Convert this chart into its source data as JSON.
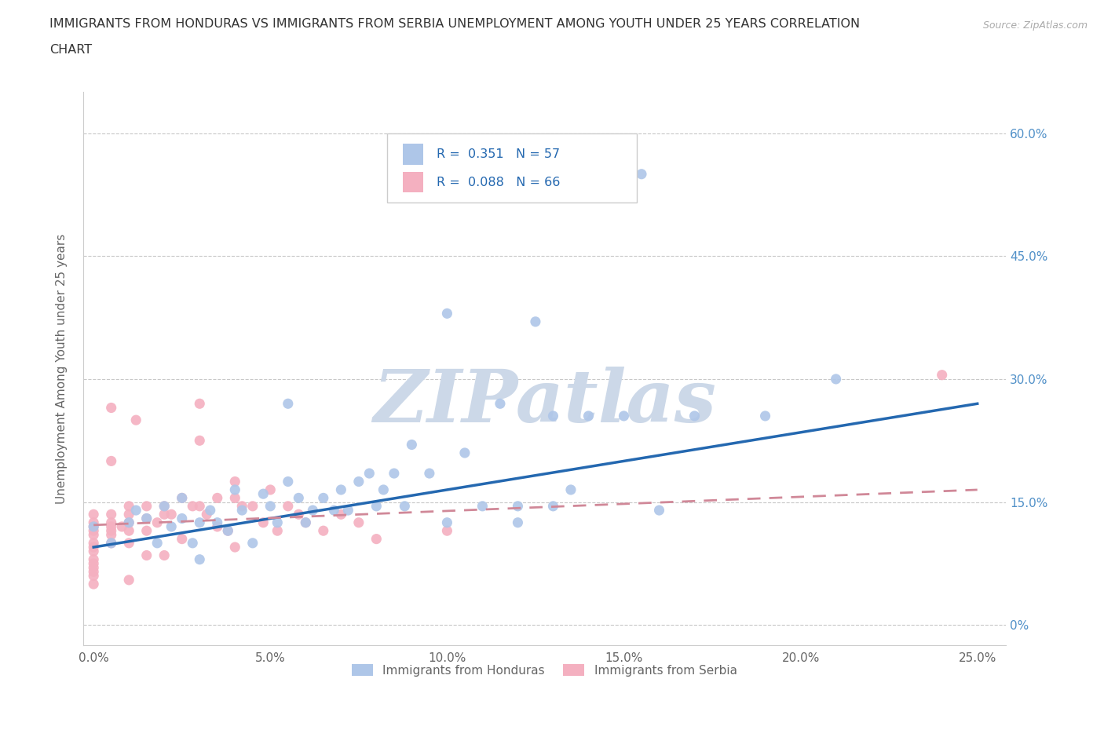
{
  "title_line1": "IMMIGRANTS FROM HONDURAS VS IMMIGRANTS FROM SERBIA UNEMPLOYMENT AMONG YOUTH UNDER 25 YEARS CORRELATION",
  "title_line2": "CHART",
  "source_text": "Source: ZipAtlas.com",
  "ylabel": "Unemployment Among Youth under 25 years",
  "grid_color": "#c8c8c8",
  "honduras_color": "#aec6e8",
  "serbia_color": "#f4b0c0",
  "trendline_honduras_color": "#2468b0",
  "trendline_serbia_color": "#d08898",
  "watermark_text": "ZIPatlas",
  "watermark_color": "#ccd8e8",
  "xlim_min": -0.003,
  "xlim_max": 0.258,
  "ylim_min": -0.025,
  "ylim_max": 0.65,
  "ytick_vals": [
    0.0,
    0.15,
    0.3,
    0.45,
    0.6
  ],
  "ytick_labels": [
    "0%",
    "15.0%",
    "30.0%",
    "45.0%",
    "60.0%"
  ],
  "xtick_vals": [
    0.0,
    0.05,
    0.1,
    0.15,
    0.2,
    0.25
  ],
  "xtick_labels": [
    "0.0%",
    "5.0%",
    "10.0%",
    "15.0%",
    "20.0%",
    "25.0%"
  ],
  "trendline_hon_x0": 0.0,
  "trendline_hon_y0": 0.095,
  "trendline_hon_x1": 0.25,
  "trendline_hon_y1": 0.27,
  "trendline_ser_x0": 0.0,
  "trendline_ser_y0": 0.122,
  "trendline_ser_x1": 0.25,
  "trendline_ser_y1": 0.165,
  "legend_r1_text": "R =  0.351   N = 57",
  "legend_r2_text": "R =  0.088   N = 66",
  "legend_color": "#2468b0",
  "hon_x": [
    0.0,
    0.005,
    0.01,
    0.012,
    0.015,
    0.018,
    0.02,
    0.022,
    0.025,
    0.025,
    0.028,
    0.03,
    0.03,
    0.033,
    0.035,
    0.038,
    0.04,
    0.042,
    0.045,
    0.048,
    0.05,
    0.052,
    0.055,
    0.055,
    0.058,
    0.06,
    0.062,
    0.065,
    0.068,
    0.07,
    0.072,
    0.075,
    0.078,
    0.08,
    0.082,
    0.085,
    0.088,
    0.09,
    0.095,
    0.1,
    0.1,
    0.105,
    0.11,
    0.115,
    0.12,
    0.12,
    0.125,
    0.13,
    0.13,
    0.135,
    0.14,
    0.15,
    0.155,
    0.16,
    0.17,
    0.19,
    0.21
  ],
  "hon_y": [
    0.12,
    0.1,
    0.125,
    0.14,
    0.13,
    0.1,
    0.145,
    0.12,
    0.155,
    0.13,
    0.1,
    0.125,
    0.08,
    0.14,
    0.125,
    0.115,
    0.165,
    0.14,
    0.1,
    0.16,
    0.145,
    0.125,
    0.27,
    0.175,
    0.155,
    0.125,
    0.14,
    0.155,
    0.14,
    0.165,
    0.14,
    0.175,
    0.185,
    0.145,
    0.165,
    0.185,
    0.145,
    0.22,
    0.185,
    0.125,
    0.38,
    0.21,
    0.145,
    0.27,
    0.145,
    0.125,
    0.37,
    0.255,
    0.145,
    0.165,
    0.255,
    0.255,
    0.55,
    0.14,
    0.255,
    0.255,
    0.3
  ],
  "ser_x": [
    0.0,
    0.0,
    0.0,
    0.0,
    0.0,
    0.0,
    0.0,
    0.0,
    0.0,
    0.0,
    0.0,
    0.0,
    0.0,
    0.0,
    0.005,
    0.005,
    0.005,
    0.005,
    0.005,
    0.005,
    0.005,
    0.005,
    0.008,
    0.01,
    0.01,
    0.01,
    0.01,
    0.01,
    0.01,
    0.012,
    0.015,
    0.015,
    0.015,
    0.015,
    0.018,
    0.02,
    0.02,
    0.02,
    0.022,
    0.025,
    0.025,
    0.028,
    0.03,
    0.03,
    0.03,
    0.032,
    0.035,
    0.035,
    0.038,
    0.04,
    0.04,
    0.04,
    0.042,
    0.045,
    0.048,
    0.05,
    0.052,
    0.055,
    0.058,
    0.06,
    0.065,
    0.07,
    0.075,
    0.08,
    0.1,
    0.24
  ],
  "ser_y": [
    0.135,
    0.125,
    0.12,
    0.115,
    0.11,
    0.1,
    0.095,
    0.09,
    0.08,
    0.075,
    0.07,
    0.065,
    0.06,
    0.05,
    0.135,
    0.125,
    0.12,
    0.115,
    0.11,
    0.1,
    0.2,
    0.265,
    0.12,
    0.145,
    0.135,
    0.125,
    0.115,
    0.1,
    0.055,
    0.25,
    0.145,
    0.13,
    0.115,
    0.085,
    0.125,
    0.145,
    0.135,
    0.085,
    0.135,
    0.155,
    0.105,
    0.145,
    0.27,
    0.225,
    0.145,
    0.135,
    0.155,
    0.12,
    0.115,
    0.175,
    0.155,
    0.095,
    0.145,
    0.145,
    0.125,
    0.165,
    0.115,
    0.145,
    0.135,
    0.125,
    0.115,
    0.135,
    0.125,
    0.105,
    0.115,
    0.305
  ]
}
